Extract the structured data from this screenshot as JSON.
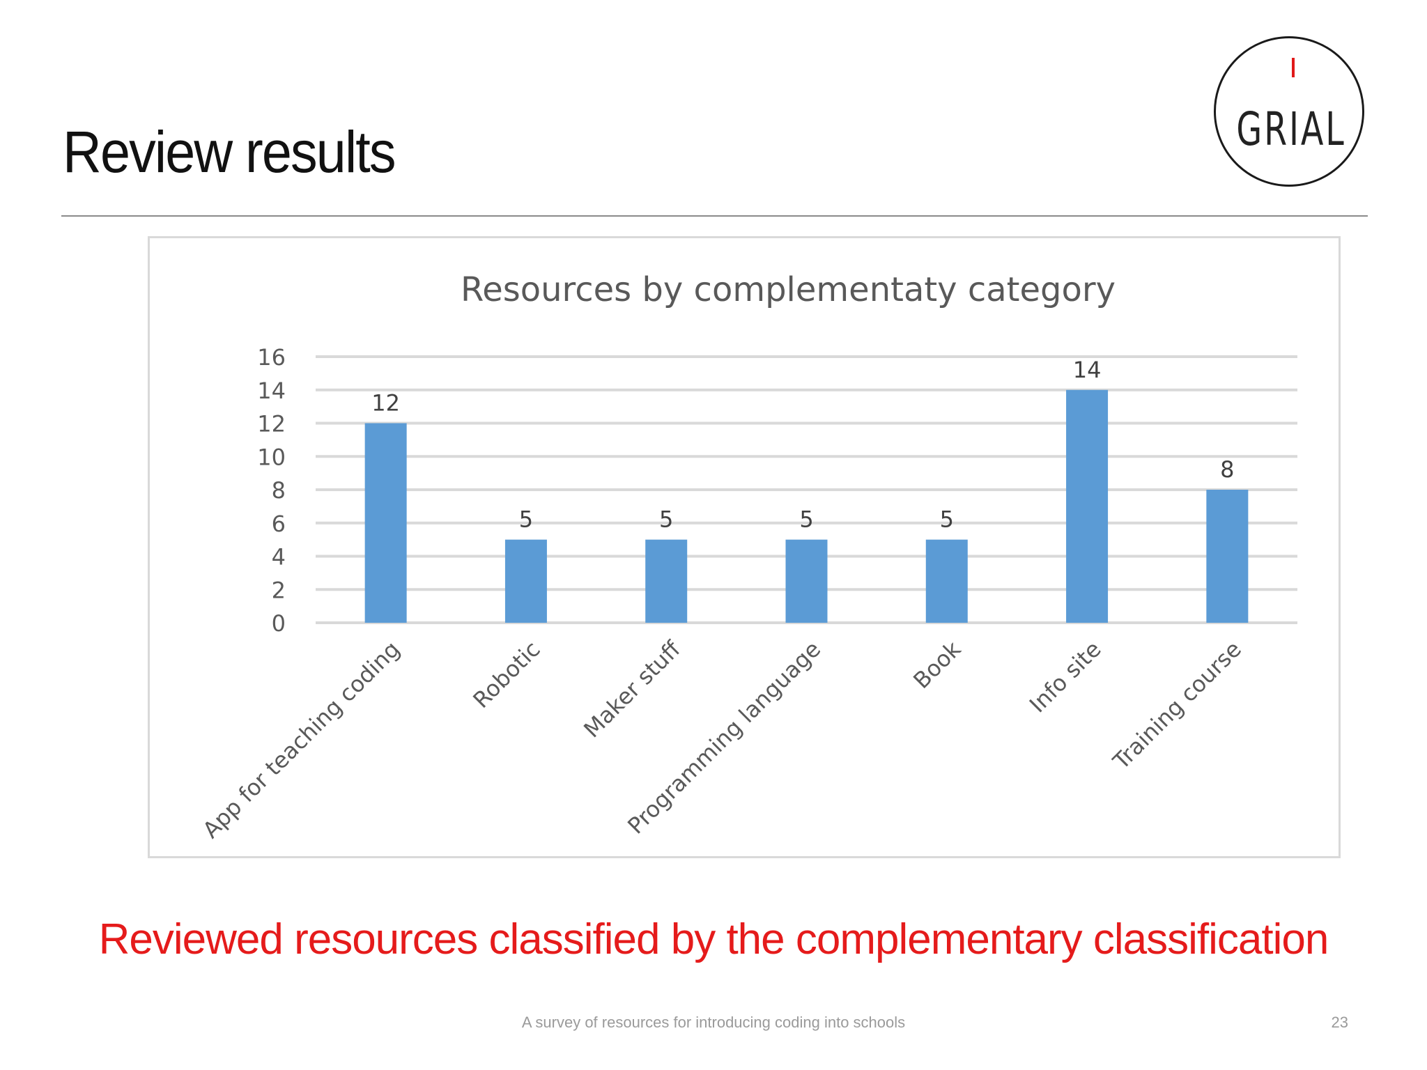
{
  "slide": {
    "title": "Review results",
    "caption": "Reviewed resources classified by the complementary classification",
    "footer": "A survey of resources for introducing coding into schools",
    "page_number": "23"
  },
  "logo": {
    "text": "GRIAL",
    "accent_color": "#e01a1a"
  },
  "colors": {
    "bar": "#5b9bd5",
    "grid": "#d9d9d9",
    "caption": "#e51b1b"
  },
  "chart_data": {
    "type": "bar",
    "title": "Resources by complementaty category",
    "categories": [
      "App for teaching coding",
      "Robotic",
      "Maker stuff",
      "Programming language",
      "Book",
      "Info site",
      "Training course"
    ],
    "values": [
      12,
      5,
      5,
      5,
      5,
      14,
      8
    ],
    "data_labels": [
      "12",
      "5",
      "5",
      "5",
      "5",
      "14",
      "8"
    ],
    "ylim": [
      0,
      16
    ],
    "yticks": [
      0,
      2,
      4,
      6,
      8,
      10,
      12,
      14,
      16
    ],
    "grid": true,
    "xlabel": "",
    "ylabel": ""
  }
}
